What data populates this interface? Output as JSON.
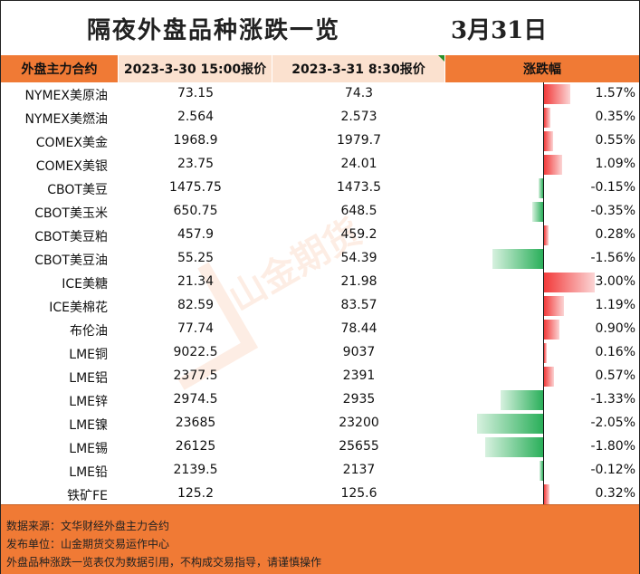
{
  "title": "隔夜外盘品种涨跌一览",
  "date": "3月31日",
  "headers": {
    "name": "外盘主力合约",
    "price1": "2023-3-30 15:00报价",
    "price2": "2023-3-31 8:30报价",
    "change": "涨跌幅"
  },
  "rows": [
    {
      "name": "NYMEX美原油",
      "p1": "73.15",
      "p2": "74.3",
      "chg": "1.57%",
      "v": 1.57
    },
    {
      "name": "NYMEX美燃油",
      "p1": "2.564",
      "p2": "2.573",
      "chg": "0.35%",
      "v": 0.35
    },
    {
      "name": "COMEX美金",
      "p1": "1968.9",
      "p2": "1979.7",
      "chg": "0.55%",
      "v": 0.55
    },
    {
      "name": "COMEX美银",
      "p1": "23.75",
      "p2": "24.01",
      "chg": "1.09%",
      "v": 1.09
    },
    {
      "name": "CBOT美豆",
      "p1": "1475.75",
      "p2": "1473.5",
      "chg": "-0.15%",
      "v": -0.15
    },
    {
      "name": "CBOT美玉米",
      "p1": "650.75",
      "p2": "648.5",
      "chg": "-0.35%",
      "v": -0.35
    },
    {
      "name": "CBOT美豆粕",
      "p1": "457.9",
      "p2": "459.2",
      "chg": "0.28%",
      "v": 0.28
    },
    {
      "name": "CBOT美豆油",
      "p1": "55.25",
      "p2": "54.39",
      "chg": "-1.56%",
      "v": -1.56
    },
    {
      "name": "ICE美糖",
      "p1": "21.34",
      "p2": "21.98",
      "chg": "3.00%",
      "v": 3.0
    },
    {
      "name": "ICE美棉花",
      "p1": "82.59",
      "p2": "83.57",
      "chg": "1.19%",
      "v": 1.19
    },
    {
      "name": "布伦油",
      "p1": "77.74",
      "p2": "78.44",
      "chg": "0.90%",
      "v": 0.9
    },
    {
      "name": "LME铜",
      "p1": "9022.5",
      "p2": "9037",
      "chg": "0.16%",
      "v": 0.16
    },
    {
      "name": "LME铝",
      "p1": "2377.5",
      "p2": "2391",
      "chg": "0.57%",
      "v": 0.57
    },
    {
      "name": "LME锌",
      "p1": "2974.5",
      "p2": "2935",
      "chg": "-1.33%",
      "v": -1.33
    },
    {
      "name": "LME镍",
      "p1": "23685",
      "p2": "23200",
      "chg": "-2.05%",
      "v": -2.05
    },
    {
      "name": "LME锡",
      "p1": "26125",
      "p2": "25655",
      "chg": "-1.80%",
      "v": -1.8
    },
    {
      "name": "LME铅",
      "p1": "2139.5",
      "p2": "2137",
      "chg": "-0.12%",
      "v": -0.12
    },
    {
      "name": "铁矿FE",
      "p1": "125.2",
      "p2": "125.6",
      "chg": "0.32%",
      "v": 0.32
    }
  ],
  "footer": {
    "line1": "数据来源：文华财经外盘主力合约",
    "line2": "发布单位：山金期货交易运作中心",
    "line3": "外盘品种涨跌一览表仅为数据引用，不构成交易指导，请谨慎操作"
  },
  "watermark": {
    "text": "山金期货"
  },
  "colors": {
    "accent": "#f07a35",
    "header_light": "#fbe1cf",
    "up": "#f23a3a",
    "down": "#2aaf5a"
  }
}
